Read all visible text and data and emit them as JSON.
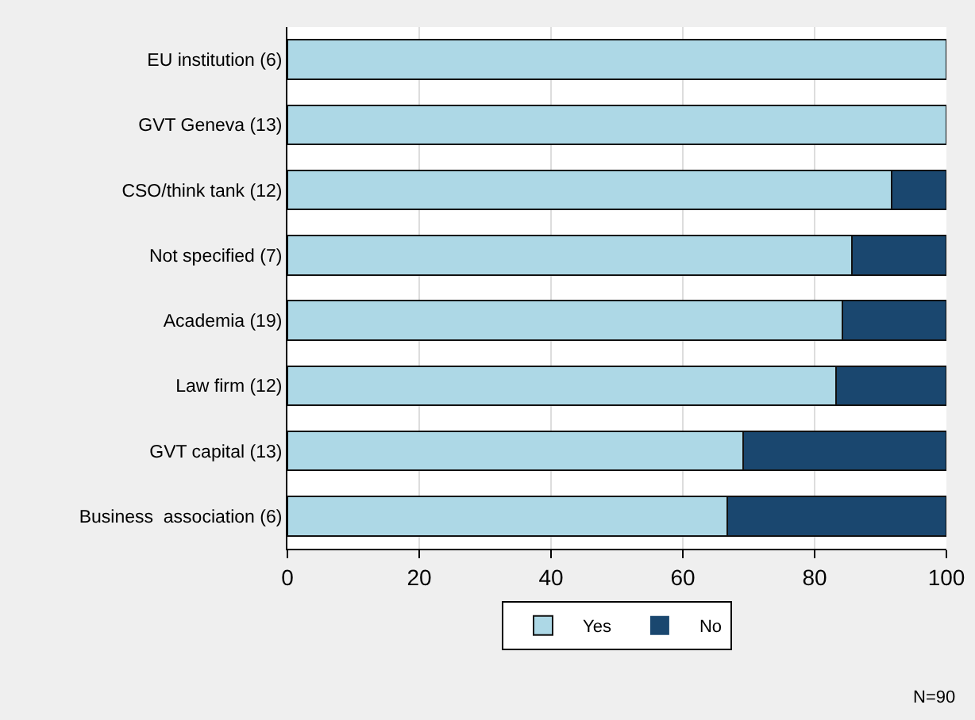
{
  "chart_data": {
    "type": "bar",
    "orientation": "horizontal",
    "stacked": true,
    "categories": [
      "EU institution (6)",
      "GVT Geneva (13)",
      "CSO/think tank (12)",
      "Not specified (7)",
      "Academia (19)",
      "Law firm (12)",
      "GVT capital (13)",
      "Business  association (6)"
    ],
    "series": [
      {
        "name": "Yes",
        "color": "#add8e6",
        "values": [
          100,
          100,
          91.7,
          85.7,
          84.2,
          83.3,
          69.2,
          66.7
        ]
      },
      {
        "name": "No",
        "color": "#1a476f",
        "values": [
          0,
          0,
          8.3,
          14.3,
          15.8,
          16.7,
          30.8,
          33.3
        ]
      }
    ],
    "xlim": [
      0,
      100
    ],
    "xticks": [
      0,
      20,
      40,
      60,
      80,
      100
    ],
    "grid": "x",
    "legend": "bottom",
    "annotations": [
      "N=90"
    ]
  }
}
